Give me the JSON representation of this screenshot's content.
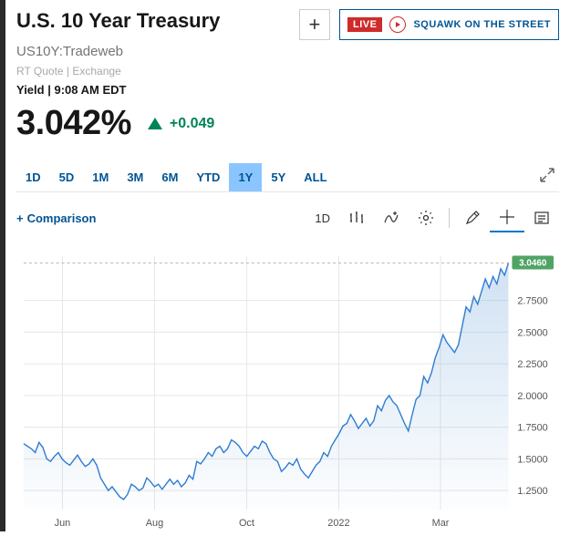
{
  "header": {
    "title": "U.S. 10 Year Treasury",
    "subtitle": "US10Y:Tradeweb",
    "meta": "RT Quote | Exchange",
    "yield_label": "Yield",
    "timestamp": "9:08 AM EDT"
  },
  "live": {
    "badge": "LIVE",
    "show": "SQUAWK ON THE STREET"
  },
  "quote": {
    "price": "3.042%",
    "change": "+0.049",
    "direction": "up",
    "change_color": "#008456"
  },
  "ranges": [
    "1D",
    "5D",
    "1M",
    "3M",
    "6M",
    "YTD",
    "1Y",
    "5Y",
    "ALL"
  ],
  "active_range": "1Y",
  "toolbar": {
    "comparison": "Comparison",
    "interval": "1D"
  },
  "chart": {
    "type": "area",
    "current_value": "3.0460",
    "current_badge_color": "#4fa463",
    "line_color": "#2e7cd1",
    "fill_color_top": "rgba(120,170,220,0.35)",
    "fill_color_bottom": "rgba(120,170,220,0.02)",
    "grid_color": "#e6e6e6",
    "dash_color": "#b8b8b8",
    "background": "#ffffff",
    "ylim": [
      1.1,
      3.1
    ],
    "yticks": [
      1.25,
      1.5,
      1.75,
      2.0,
      2.25,
      2.5,
      2.75
    ],
    "ytick_labels": [
      "1.2500",
      "1.5000",
      "1.7500",
      "2.0000",
      "2.2500",
      "2.5000",
      "2.7500"
    ],
    "xtick_labels": [
      "Jun",
      "Aug",
      "Oct",
      "2022",
      "Mar"
    ],
    "xtick_positions": [
      0.08,
      0.27,
      0.46,
      0.65,
      0.86
    ],
    "data": [
      1.62,
      1.6,
      1.58,
      1.55,
      1.63,
      1.59,
      1.5,
      1.48,
      1.52,
      1.55,
      1.5,
      1.47,
      1.45,
      1.49,
      1.53,
      1.48,
      1.44,
      1.46,
      1.5,
      1.45,
      1.35,
      1.3,
      1.25,
      1.28,
      1.24,
      1.2,
      1.18,
      1.22,
      1.3,
      1.28,
      1.25,
      1.27,
      1.35,
      1.32,
      1.28,
      1.3,
      1.26,
      1.3,
      1.34,
      1.3,
      1.33,
      1.28,
      1.31,
      1.37,
      1.34,
      1.48,
      1.46,
      1.5,
      1.55,
      1.52,
      1.58,
      1.6,
      1.55,
      1.58,
      1.65,
      1.63,
      1.6,
      1.55,
      1.52,
      1.56,
      1.6,
      1.58,
      1.64,
      1.62,
      1.55,
      1.5,
      1.48,
      1.4,
      1.43,
      1.47,
      1.45,
      1.5,
      1.42,
      1.38,
      1.35,
      1.4,
      1.45,
      1.48,
      1.55,
      1.52,
      1.6,
      1.65,
      1.7,
      1.76,
      1.78,
      1.85,
      1.8,
      1.74,
      1.78,
      1.82,
      1.76,
      1.8,
      1.92,
      1.88,
      1.96,
      2.0,
      1.95,
      1.92,
      1.85,
      1.78,
      1.72,
      1.85,
      1.97,
      2.0,
      2.15,
      2.1,
      2.18,
      2.3,
      2.38,
      2.48,
      2.42,
      2.38,
      2.34,
      2.4,
      2.55,
      2.7,
      2.66,
      2.78,
      2.72,
      2.82,
      2.92,
      2.85,
      2.94,
      2.88,
      3.0,
      2.95,
      3.046
    ]
  }
}
